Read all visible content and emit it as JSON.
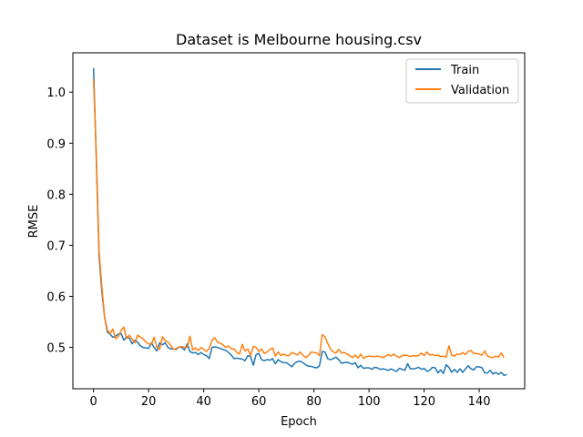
{
  "chart_data": {
    "type": "line",
    "title": "Dataset is Melbourne housing.csv",
    "xlabel": "Epoch",
    "ylabel": "RMSE",
    "xlim": [
      -7.5,
      156.5
    ],
    "ylim": [
      0.419,
      1.077
    ],
    "xticks": [
      0,
      20,
      40,
      60,
      80,
      100,
      120,
      140
    ],
    "yticks": [
      0.5,
      0.6,
      0.7,
      0.8,
      0.9,
      1.0
    ],
    "ytick_labels": [
      "0.5",
      "0.6",
      "0.7",
      "0.8",
      "0.9",
      "1.0"
    ],
    "grid": false,
    "legend_position": "top-right",
    "series": [
      {
        "name": "Train",
        "color": "#1f77b4",
        "values": [
          1.047,
          0.87,
          0.68,
          0.61,
          0.56,
          0.53,
          0.526,
          0.52,
          0.522,
          0.526,
          0.527,
          0.514,
          0.521,
          0.518,
          0.507,
          0.514,
          0.51,
          0.503,
          0.5,
          0.499,
          0.498,
          0.509,
          0.5,
          0.493,
          0.509,
          0.505,
          0.509,
          0.5,
          0.497,
          0.497,
          0.496,
          0.501,
          0.5,
          0.495,
          0.507,
          0.492,
          0.489,
          0.49,
          0.486,
          0.49,
          0.486,
          0.484,
          0.478,
          0.5,
          0.501,
          0.5,
          0.498,
          0.496,
          0.494,
          0.49,
          0.485,
          0.478,
          0.479,
          0.478,
          0.477,
          0.474,
          0.484,
          0.482,
          0.465,
          0.486,
          0.488,
          0.476,
          0.474,
          0.476,
          0.475,
          0.478,
          0.468,
          0.476,
          0.472,
          0.47,
          0.47,
          0.466,
          0.462,
          0.469,
          0.472,
          0.473,
          0.47,
          0.466,
          0.463,
          0.463,
          0.461,
          0.46,
          0.464,
          0.492,
          0.491,
          0.478,
          0.476,
          0.478,
          0.481,
          0.476,
          0.469,
          0.47,
          0.471,
          0.469,
          0.467,
          0.47,
          0.46,
          0.465,
          0.459,
          0.46,
          0.46,
          0.457,
          0.461,
          0.46,
          0.457,
          0.458,
          0.457,
          0.455,
          0.458,
          0.455,
          0.453,
          0.459,
          0.457,
          0.455,
          0.468,
          0.458,
          0.458,
          0.459,
          0.461,
          0.457,
          0.459,
          0.453,
          0.455,
          0.461,
          0.46,
          0.45,
          0.456,
          0.449,
          0.466,
          0.461,
          0.451,
          0.457,
          0.451,
          0.458,
          0.451,
          0.458,
          0.464,
          0.458,
          0.456,
          0.462,
          0.462,
          0.46,
          0.45,
          0.45,
          0.455,
          0.448,
          0.451,
          0.447,
          0.451,
          0.445,
          0.447
        ]
      },
      {
        "name": "Validation",
        "color": "#ff7f0e",
        "values": [
          1.025,
          0.88,
          0.69,
          0.62,
          0.56,
          0.534,
          0.527,
          0.536,
          0.517,
          0.521,
          0.533,
          0.54,
          0.517,
          0.524,
          0.516,
          0.509,
          0.524,
          0.52,
          0.517,
          0.51,
          0.507,
          0.506,
          0.52,
          0.5,
          0.496,
          0.521,
          0.513,
          0.511,
          0.504,
          0.496,
          0.498,
          0.5,
          0.502,
          0.5,
          0.5,
          0.522,
          0.495,
          0.499,
          0.494,
          0.5,
          0.496,
          0.492,
          0.498,
          0.514,
          0.519,
          0.51,
          0.508,
          0.505,
          0.5,
          0.503,
          0.497,
          0.497,
          0.49,
          0.487,
          0.506,
          0.493,
          0.497,
          0.484,
          0.502,
          0.5,
          0.492,
          0.497,
          0.488,
          0.491,
          0.496,
          0.499,
          0.483,
          0.491,
          0.484,
          0.487,
          0.484,
          0.484,
          0.49,
          0.488,
          0.485,
          0.491,
          0.485,
          0.48,
          0.484,
          0.491,
          0.49,
          0.489,
          0.484,
          0.525,
          0.521,
          0.508,
          0.497,
          0.491,
          0.489,
          0.496,
          0.489,
          0.49,
          0.487,
          0.484,
          0.48,
          0.485,
          0.479,
          0.487,
          0.478,
          0.482,
          0.483,
          0.482,
          0.482,
          0.483,
          0.482,
          0.48,
          0.483,
          0.486,
          0.483,
          0.487,
          0.483,
          0.48,
          0.484,
          0.485,
          0.484,
          0.482,
          0.484,
          0.483,
          0.484,
          0.489,
          0.484,
          0.491,
          0.485,
          0.486,
          0.484,
          0.485,
          0.482,
          0.483,
          0.481,
          0.503,
          0.485,
          0.483,
          0.487,
          0.486,
          0.49,
          0.486,
          0.492,
          0.494,
          0.488,
          0.488,
          0.487,
          0.485,
          0.493,
          0.483,
          0.481,
          0.48,
          0.483,
          0.481,
          0.489,
          0.48
        ]
      }
    ]
  }
}
